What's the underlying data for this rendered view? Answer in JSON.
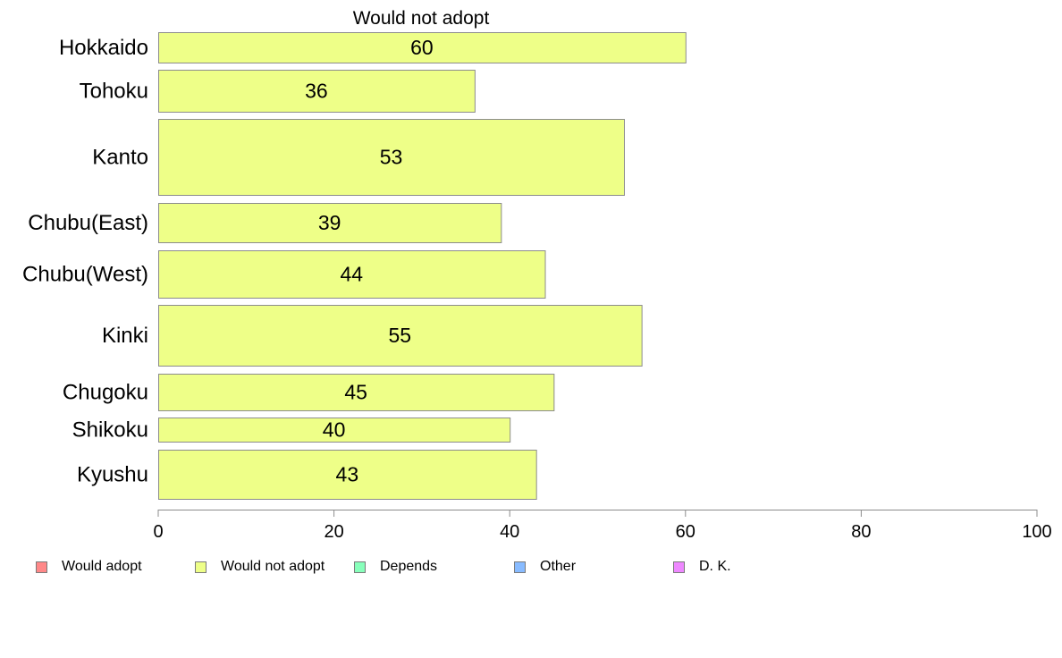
{
  "chart_data": {
    "type": "bar",
    "orientation": "horizontal",
    "title": "Would not adopt",
    "categories": [
      "Hokkaido",
      "Tohoku",
      "Kanto",
      "Chubu(East)",
      "Chubu(West)",
      "Kinki",
      "Chugoku",
      "Shikoku",
      "Kyushu"
    ],
    "series": [
      {
        "name": "Would not adopt",
        "color": "#eeff88",
        "values": [
          60,
          36,
          53,
          39,
          44,
          55,
          45,
          40,
          43
        ],
        "labels": [
          "60",
          "36",
          "53",
          "39",
          "44",
          "55",
          "45",
          "40",
          "43"
        ]
      }
    ],
    "xlim": [
      0,
      100
    ],
    "xticks": [
      0,
      20,
      40,
      60,
      80,
      100
    ],
    "xtick_labels": [
      "0",
      "20",
      "40",
      "60",
      "80",
      "100"
    ],
    "grid": false,
    "legend": {
      "placement": "bottom",
      "entries": [
        {
          "label": "Would adopt",
          "color": "#ff8888"
        },
        {
          "label": "Would not adopt",
          "color": "#eeff88"
        },
        {
          "label": "Depends",
          "color": "#88ffbb"
        },
        {
          "label": "Other",
          "color": "#88bbff"
        },
        {
          "label": "D. K.",
          "color": "#ee88ff"
        }
      ]
    }
  }
}
